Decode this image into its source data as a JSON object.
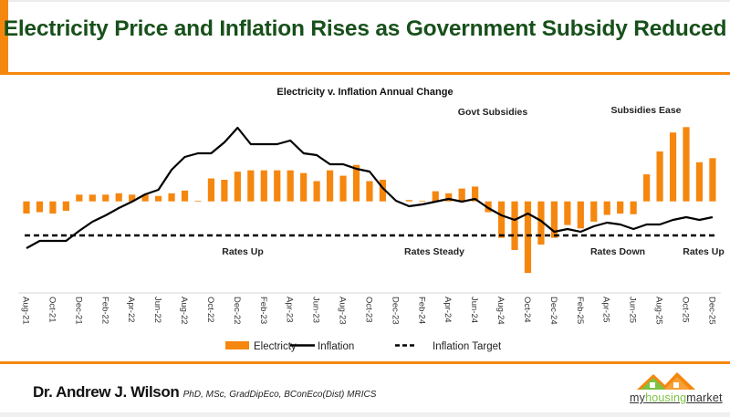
{
  "header": {
    "title": "Electricity Price and Inflation Rises as Government Subsidy Reduced"
  },
  "footer": {
    "author": "Dr. Andrew J. Wilson",
    "credentials": "PhD, MSc, GradDipEco, BConEco(Dist) MRICS",
    "logo": {
      "part1": "my",
      "part2": "housing",
      "part3": "market"
    }
  },
  "colors": {
    "accent": "#f5870f",
    "title": "#17501a",
    "electricity": "#f5870f",
    "inflation": "#000000"
  },
  "chart_data": {
    "type": "bar+line",
    "title": "Electricity v. Inflation Annual Change",
    "y_axis_labels_shown": false,
    "grid": false,
    "legend_position": "bottom",
    "categories": [
      "Aug-21",
      "Sep-21",
      "Oct-21",
      "Nov-21",
      "Dec-21",
      "Jan-22",
      "Feb-22",
      "Mar-22",
      "Apr-22",
      "May-22",
      "Jun-22",
      "Jul-22",
      "Aug-22",
      "Sep-22",
      "Oct-22",
      "Nov-22",
      "Dec-22",
      "Jan-23",
      "Feb-23",
      "Mar-23",
      "Apr-23",
      "May-23",
      "Jun-23",
      "Jul-23",
      "Aug-23",
      "Sep-23",
      "Oct-23",
      "Nov-23",
      "Dec-23",
      "Jan-24",
      "Feb-24",
      "Mar-24",
      "Apr-24",
      "May-24",
      "Jun-24",
      "Jul-24",
      "Aug-24",
      "Sep-24",
      "Oct-24",
      "Nov-24",
      "Dec-24",
      "Jan-25",
      "Feb-25",
      "Mar-25",
      "Apr-25",
      "May-25",
      "Jun-25",
      "Jul-25",
      "Aug-25",
      "Sep-25",
      "Oct-25",
      "Nov-25",
      "Dec-25"
    ],
    "tick_labels": [
      "Aug-21",
      "Oct-21",
      "Dec-21",
      "Feb-22",
      "Apr-22",
      "Jun-22",
      "Aug-22",
      "Oct-22",
      "Dec-22",
      "Feb-23",
      "Apr-23",
      "Jun-23",
      "Aug-23",
      "Oct-23",
      "Dec-23",
      "Feb-24",
      "Apr-24",
      "Jun-24",
      "Aug-24",
      "Oct-24",
      "Dec-24",
      "Feb-25",
      "Apr-25",
      "Jun-25",
      "Aug-25",
      "Oct-25",
      "Dec-25"
    ],
    "series": [
      {
        "name": "Electricty",
        "type": "bar",
        "color": "#f5870f",
        "values": [
          -0.9,
          -0.8,
          -0.9,
          -0.7,
          0.5,
          0.5,
          0.5,
          0.6,
          0.5,
          0.5,
          0.4,
          0.6,
          0.8,
          0.05,
          1.7,
          1.6,
          2.2,
          2.3,
          2.3,
          2.3,
          2.3,
          2.1,
          1.5,
          2.3,
          1.9,
          2.7,
          1.5,
          1.6,
          0,
          0.1,
          0.05,
          0.75,
          0.6,
          0.95,
          1.1,
          -0.8,
          -2.7,
          -3.6,
          -5.3,
          -3.2,
          -2.7,
          -1.75,
          -2.0,
          -1.5,
          -1.0,
          -0.9,
          -0.95,
          2.0,
          3.7,
          5.1,
          5.5,
          2.9,
          3.2
        ]
      },
      {
        "name": "Inflation",
        "type": "line",
        "color": "#000000",
        "values": [
          1.8,
          2.2,
          2.2,
          2.2,
          2.75,
          3.25,
          3.6,
          4.0,
          4.35,
          4.75,
          5.0,
          6.1,
          6.8,
          7.0,
          7.0,
          7.6,
          8.4,
          7.5,
          7.5,
          7.5,
          7.7,
          7.0,
          6.9,
          6.4,
          6.4,
          6.15,
          6.0,
          5.1,
          4.4,
          4.1,
          4.2,
          4.35,
          4.5,
          4.35,
          4.5,
          4.0,
          3.6,
          3.35,
          3.7,
          3.3,
          2.7,
          2.85,
          2.7,
          3.0,
          3.2,
          3.1,
          2.85,
          3.1,
          3.1,
          3.35,
          3.5,
          3.35,
          3.5
        ]
      },
      {
        "name": "Inflation Target",
        "type": "line",
        "style": "dashed",
        "color": "#000000",
        "value": 2.5
      }
    ],
    "annotations": [
      {
        "text": "Govt Subsidies",
        "at": "Jun-24"
      },
      {
        "text": "Subsidies Ease",
        "at": "Sep-25"
      },
      {
        "text": "Rates Up",
        "at": "Dec-22"
      },
      {
        "text": "Rates Steady",
        "at": "Feb-24"
      },
      {
        "text": "Rates Down",
        "at": "Apr-25"
      },
      {
        "text": "Rates Up",
        "at": "Nov-25"
      }
    ]
  }
}
